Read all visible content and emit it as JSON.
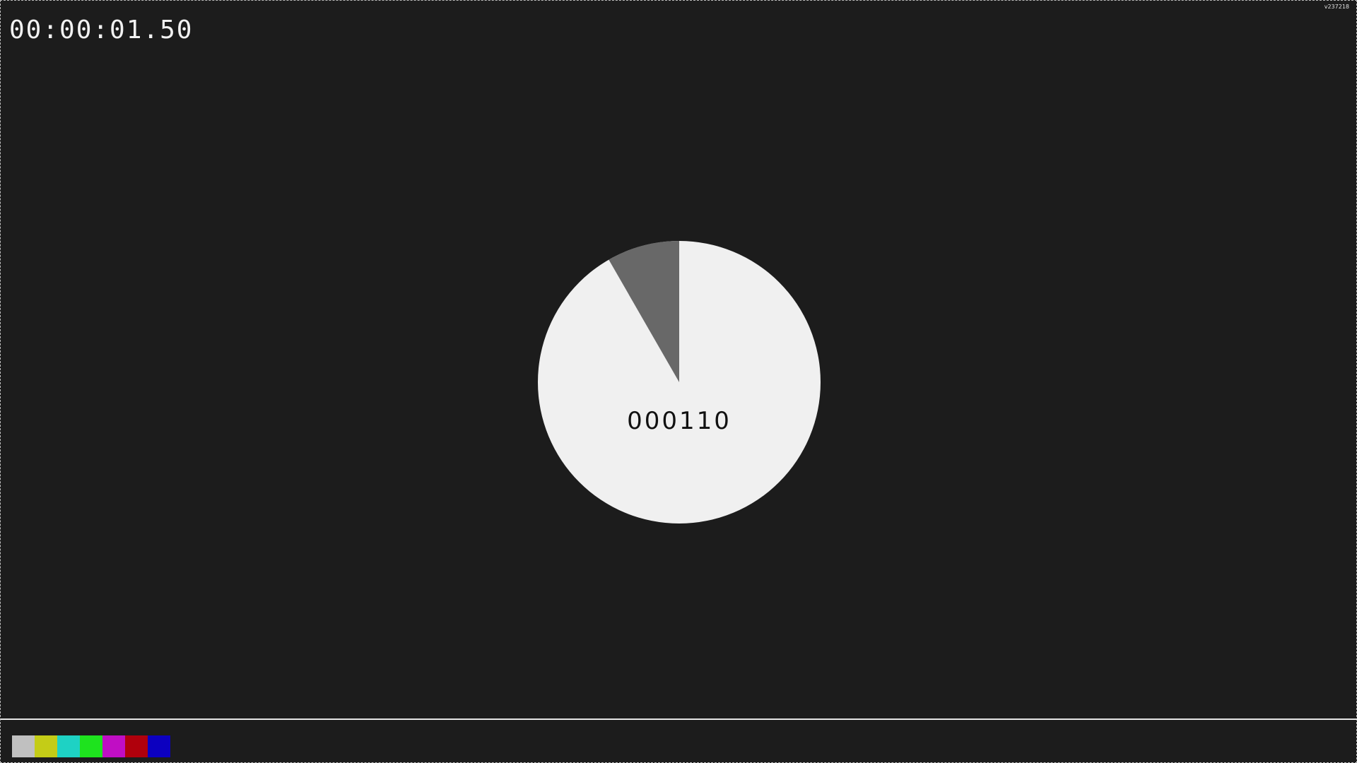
{
  "timecode": "00:00:01.50",
  "frame_counter": "000110",
  "version": "v237218",
  "sweep": {
    "elapsed_fraction": 0.917,
    "fill_color": "#f0f0f0",
    "remaining_color": "#686868"
  },
  "color_bars": [
    {
      "name": "gray",
      "color": "#c0c0c0"
    },
    {
      "name": "yellow",
      "color": "#c4cc17"
    },
    {
      "name": "cyan",
      "color": "#1ed2c4"
    },
    {
      "name": "green",
      "color": "#1ee31e"
    },
    {
      "name": "magenta",
      "color": "#c00ec4"
    },
    {
      "name": "red",
      "color": "#b0000c"
    },
    {
      "name": "blue",
      "color": "#0c00c0"
    }
  ]
}
